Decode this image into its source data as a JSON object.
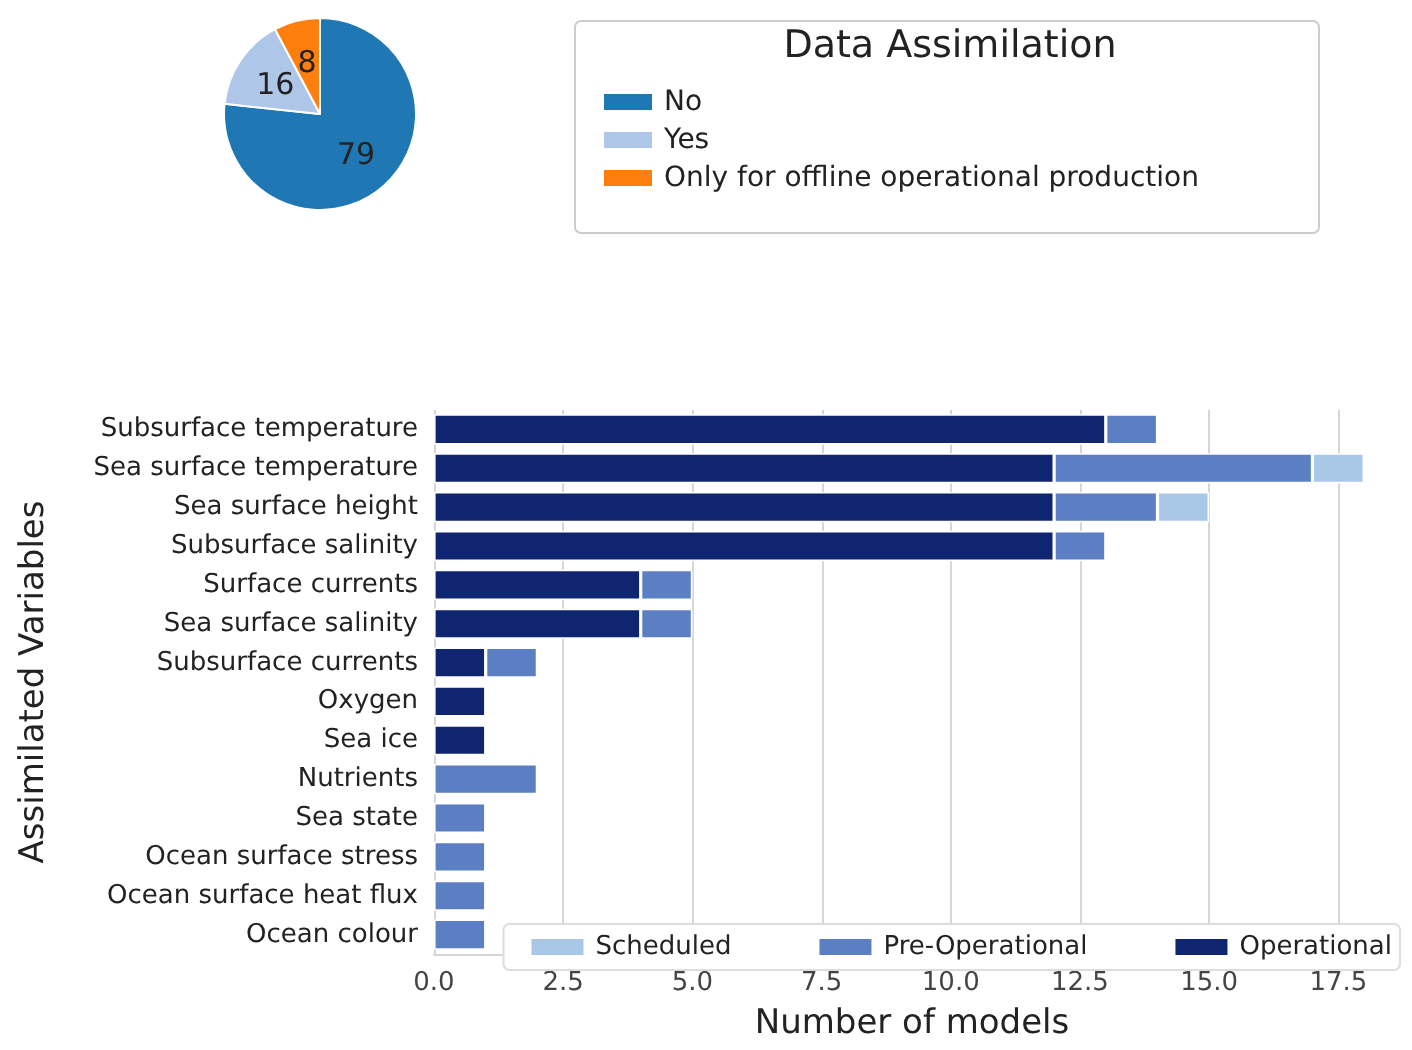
{
  "chart_data": [
    {
      "type": "pie",
      "legend_title": "Data Assimilation",
      "legend": "right",
      "data_labels": true,
      "categories": [
        "No",
        "Yes",
        "Only for offline operational production"
      ],
      "values": [
        79,
        16,
        8
      ],
      "colors": [
        "#1f77b4",
        "#aec7e8",
        "#ff7f0e"
      ]
    },
    {
      "type": "bar",
      "orientation": "horizontal",
      "stacked": true,
      "xlabel": "Number of models",
      "ylabel": "Assimilated Variables",
      "legend": "bottom right",
      "grid": "x",
      "categories": [
        "Subsurface temperature",
        "Sea surface temperature",
        "Sea surface height",
        "Subsurface salinity",
        "Surface currents",
        "Sea surface salinity",
        "Subsurface currents",
        "Oxygen",
        "Sea ice",
        "Nutrients",
        "Sea state",
        "Ocean surface stress",
        "Ocean surface heat flux",
        "Ocean colour"
      ],
      "series": [
        {
          "name": "Operational",
          "color": "#0f2570",
          "values": [
            13,
            12,
            12,
            12,
            4,
            4,
            1,
            1,
            1,
            null,
            null,
            null,
            null,
            null
          ]
        },
        {
          "name": "Pre-Operational",
          "color": "#5b7fc2",
          "values": [
            1,
            5,
            2,
            1,
            1,
            1,
            1,
            null,
            null,
            2,
            1,
            1,
            1,
            1
          ]
        },
        {
          "name": "Scheduled",
          "color": "#a9c8e8",
          "values": [
            null,
            1,
            1,
            null,
            null,
            null,
            null,
            null,
            null,
            null,
            null,
            null,
            null,
            null
          ]
        }
      ],
      "xlim": [
        0,
        18.5
      ],
      "xticks": [
        {
          "value": 0,
          "label": "0.0"
        },
        {
          "value": 2.5,
          "label": "2.5"
        },
        {
          "value": 5,
          "label": "5.0"
        },
        {
          "value": 7.5,
          "label": "7.5"
        },
        {
          "value": 10,
          "label": "10.0"
        },
        {
          "value": 12.5,
          "label": "12.5"
        },
        {
          "value": 15,
          "label": "15.0"
        },
        {
          "value": 17.5,
          "label": "17.5"
        }
      ]
    }
  ]
}
